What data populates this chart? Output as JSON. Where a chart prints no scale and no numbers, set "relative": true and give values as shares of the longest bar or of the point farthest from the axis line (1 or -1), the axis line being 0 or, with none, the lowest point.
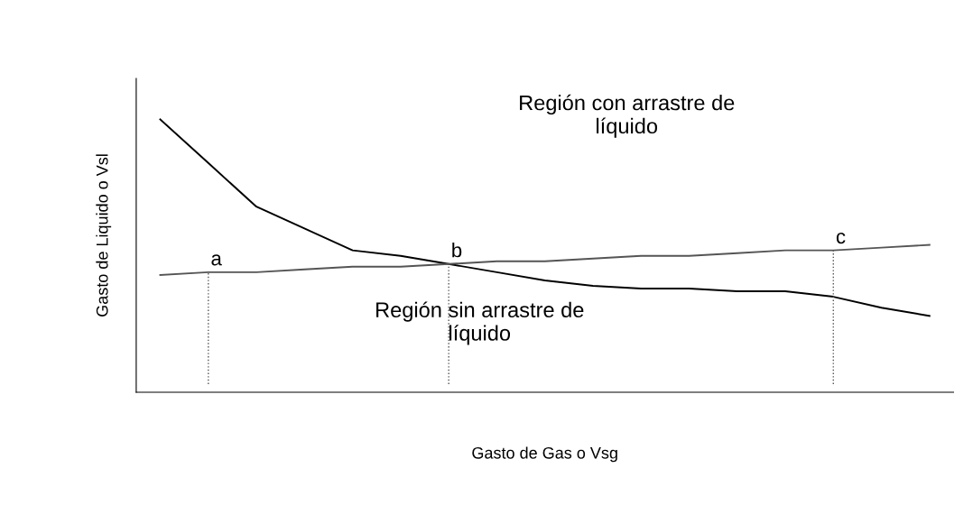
{
  "chart_data": {
    "type": "line",
    "relative": true,
    "xlabel": "Gasto de Gas o Vsg",
    "ylabel": "Gasto de Liquido o Vsl",
    "categories": [
      null,
      null,
      null,
      null,
      null,
      null,
      null,
      null,
      null,
      null,
      null,
      null,
      null,
      null,
      null,
      null,
      null
    ],
    "series": [
      {
        "color": "#000000",
        "values": [
          1,
          0.84,
          0.68,
          0.6,
          0.52,
          0.5,
          0.47,
          0.44,
          0.41,
          0.39,
          0.38,
          0.38,
          0.37,
          0.37,
          0.35,
          0.31,
          0.28
        ]
      },
      {
        "color": "#555555",
        "values": [
          0.43,
          0.44,
          0.44,
          0.45,
          0.46,
          0.46,
          0.47,
          0.48,
          0.48,
          0.49,
          0.5,
          0.5,
          0.51,
          0.52,
          0.52,
          0.53,
          0.54
        ]
      }
    ],
    "annotations": [
      "Región con arrastre de\nlíquido",
      "Región sin arrastre de\nlíquido",
      "a",
      "b",
      "c"
    ],
    "grid": false,
    "legend": false
  }
}
